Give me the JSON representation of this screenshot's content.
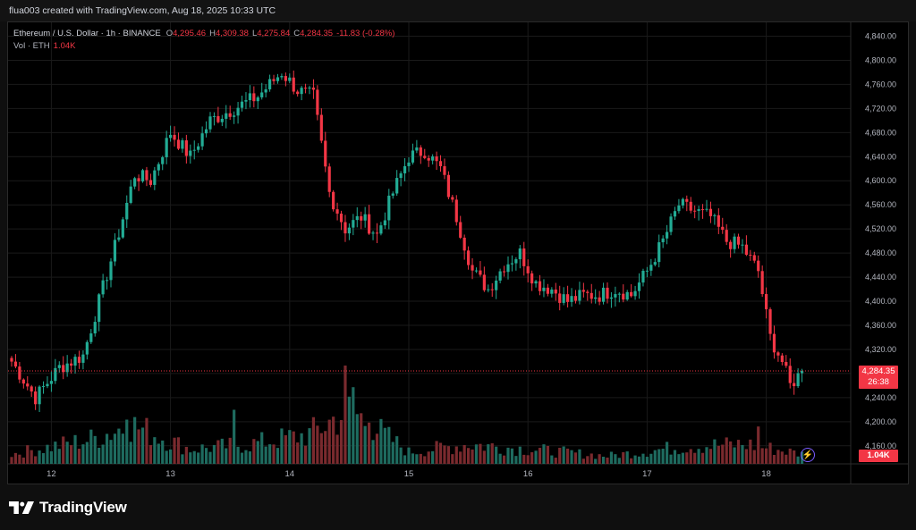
{
  "caption": "flua003 created with TradingView.com, Aug 18, 2025 10:33 UTC",
  "legend": {
    "symbol": "Ethereum / U.S. Dollar · 1h · BINANCE",
    "o_label": "O",
    "o_value": "4,295.46",
    "h_label": "H",
    "h_value": "4,309.38",
    "l_label": "L",
    "l_value": "4,275.84",
    "c_label": "C",
    "c_value": "4,284.35",
    "change": "-11.83 (-0.28%)",
    "vol_label": "Vol · ETH",
    "vol_value": "1.04K"
  },
  "price_tag": {
    "price": "4,284.35",
    "countdown": "26:38"
  },
  "volume_tag": "1.04K",
  "brand": "TradingView",
  "colors": {
    "up": "#22ab94",
    "down": "#f23645",
    "up_vol": "#1e6b5f",
    "down_vol": "#7a2a2e",
    "background": "#000000",
    "grid": "#1a1a1a"
  },
  "chart_data": {
    "type": "candlestick",
    "symbol": "ETHUSD",
    "interval": "1h",
    "ylim": [
      4130,
      4860
    ],
    "y_ticks": [
      "4,160.00",
      "4,200.00",
      "4,240.00",
      "4,280.00",
      "4,320.00",
      "4,360.00",
      "4,400.00",
      "4,440.00",
      "4,480.00",
      "4,520.00",
      "4,560.00",
      "4,600.00",
      "4,640.00",
      "4,680.00",
      "4,720.00",
      "4,760.00",
      "4,800.00",
      "4,840.00"
    ],
    "x_ticks": [
      "12",
      "13",
      "14",
      "15",
      "16",
      "17",
      "18"
    ],
    "current_price": 4284.35,
    "anchors": [
      {
        "i": 0,
        "c": 4300
      },
      {
        "i": 6,
        "c": 4240
      },
      {
        "i": 12,
        "c": 4290
      },
      {
        "i": 18,
        "c": 4310
      },
      {
        "i": 22,
        "c": 4400
      },
      {
        "i": 26,
        "c": 4490
      },
      {
        "i": 31,
        "c": 4610
      },
      {
        "i": 35,
        "c": 4600
      },
      {
        "i": 40,
        "c": 4680
      },
      {
        "i": 45,
        "c": 4640
      },
      {
        "i": 50,
        "c": 4700
      },
      {
        "i": 56,
        "c": 4720
      },
      {
        "i": 62,
        "c": 4740
      },
      {
        "i": 68,
        "c": 4780
      },
      {
        "i": 72,
        "c": 4750
      },
      {
        "i": 76,
        "c": 4740
      },
      {
        "i": 80,
        "c": 4580
      },
      {
        "i": 84,
        "c": 4520
      },
      {
        "i": 88,
        "c": 4540
      },
      {
        "i": 92,
        "c": 4510
      },
      {
        "i": 96,
        "c": 4580
      },
      {
        "i": 100,
        "c": 4640
      },
      {
        "i": 104,
        "c": 4650
      },
      {
        "i": 108,
        "c": 4620
      },
      {
        "i": 112,
        "c": 4540
      },
      {
        "i": 116,
        "c": 4450
      },
      {
        "i": 120,
        "c": 4420
      },
      {
        "i": 124,
        "c": 4460
      },
      {
        "i": 128,
        "c": 4480
      },
      {
        "i": 132,
        "c": 4430
      },
      {
        "i": 136,
        "c": 4420
      },
      {
        "i": 140,
        "c": 4400
      },
      {
        "i": 144,
        "c": 4410
      },
      {
        "i": 148,
        "c": 4410
      },
      {
        "i": 152,
        "c": 4420
      },
      {
        "i": 156,
        "c": 4410
      },
      {
        "i": 160,
        "c": 4450
      },
      {
        "i": 164,
        "c": 4500
      },
      {
        "i": 168,
        "c": 4560
      },
      {
        "i": 172,
        "c": 4550
      },
      {
        "i": 176,
        "c": 4540
      },
      {
        "i": 180,
        "c": 4500
      },
      {
        "i": 184,
        "c": 4490
      },
      {
        "i": 188,
        "c": 4450
      },
      {
        "i": 191,
        "c": 4340
      },
      {
        "i": 194,
        "c": 4300
      },
      {
        "i": 196,
        "c": 4260
      },
      {
        "i": 199,
        "c": 4284
      }
    ],
    "volume_anchors": [
      {
        "i": 0,
        "v": 0.1
      },
      {
        "i": 20,
        "v": 0.25
      },
      {
        "i": 30,
        "v": 0.4
      },
      {
        "i": 45,
        "v": 0.15
      },
      {
        "i": 60,
        "v": 0.2
      },
      {
        "i": 75,
        "v": 0.3
      },
      {
        "i": 85,
        "v": 0.55
      },
      {
        "i": 100,
        "v": 0.12
      },
      {
        "i": 115,
        "v": 0.2
      },
      {
        "i": 130,
        "v": 0.15
      },
      {
        "i": 150,
        "v": 0.08
      },
      {
        "i": 170,
        "v": 0.18
      },
      {
        "i": 185,
        "v": 0.2
      },
      {
        "i": 199,
        "v": 0.1
      }
    ],
    "volume_spikes": [
      {
        "i": 84,
        "v": 1.0
      },
      {
        "i": 86,
        "v": 0.78
      },
      {
        "i": 29,
        "v": 0.45
      },
      {
        "i": 56,
        "v": 0.55
      },
      {
        "i": 90,
        "v": 0.42
      },
      {
        "i": 188,
        "v": 0.38
      }
    ]
  }
}
